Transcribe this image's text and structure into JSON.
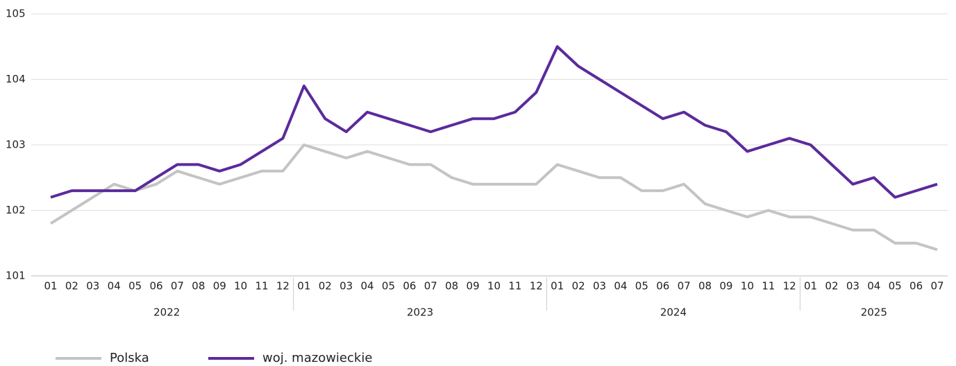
{
  "chart_data": {
    "type": "line",
    "categories": [
      "01",
      "02",
      "03",
      "04",
      "05",
      "06",
      "07",
      "08",
      "09",
      "10",
      "11",
      "12",
      "01",
      "02",
      "03",
      "04",
      "05",
      "06",
      "07",
      "08",
      "09",
      "10",
      "11",
      "12",
      "01",
      "02",
      "03",
      "04",
      "05",
      "06",
      "07",
      "08",
      "09",
      "10",
      "11",
      "12",
      "01",
      "02",
      "03",
      "04",
      "05",
      "06",
      "07"
    ],
    "years": [
      "2022",
      "2023",
      "2024",
      "2025"
    ],
    "series": [
      {
        "name": "Polska",
        "color": "#c4c4c4",
        "values": [
          101.8,
          102.0,
          102.2,
          102.4,
          102.3,
          102.4,
          102.6,
          102.5,
          102.4,
          102.5,
          102.6,
          102.6,
          103.0,
          102.9,
          102.8,
          102.9,
          102.8,
          102.7,
          102.7,
          102.5,
          102.4,
          102.4,
          102.4,
          102.4,
          102.7,
          102.6,
          102.5,
          102.5,
          102.3,
          102.3,
          102.4,
          102.1,
          102.0,
          101.9,
          102.0,
          101.9,
          101.9,
          101.8,
          101.7,
          101.7,
          101.5,
          101.5,
          101.4
        ]
      },
      {
        "name": "woj. mazowieckie",
        "color": "#5b2a9c",
        "values": [
          102.2,
          102.3,
          102.3,
          102.3,
          102.3,
          102.5,
          102.7,
          102.7,
          102.6,
          102.7,
          102.9,
          103.1,
          103.9,
          103.4,
          103.2,
          103.5,
          103.4,
          103.3,
          103.2,
          103.3,
          103.4,
          103.4,
          103.5,
          103.8,
          104.5,
          104.2,
          104.0,
          103.8,
          103.6,
          103.4,
          103.5,
          103.3,
          103.2,
          102.9,
          103.0,
          103.1,
          103.0,
          102.7,
          102.4,
          102.5,
          102.2,
          102.3,
          102.4
        ]
      }
    ],
    "ylim": [
      101,
      105
    ],
    "yticks": [
      101,
      102,
      103,
      104,
      105
    ],
    "grid": true,
    "legend": "bottom-left"
  }
}
